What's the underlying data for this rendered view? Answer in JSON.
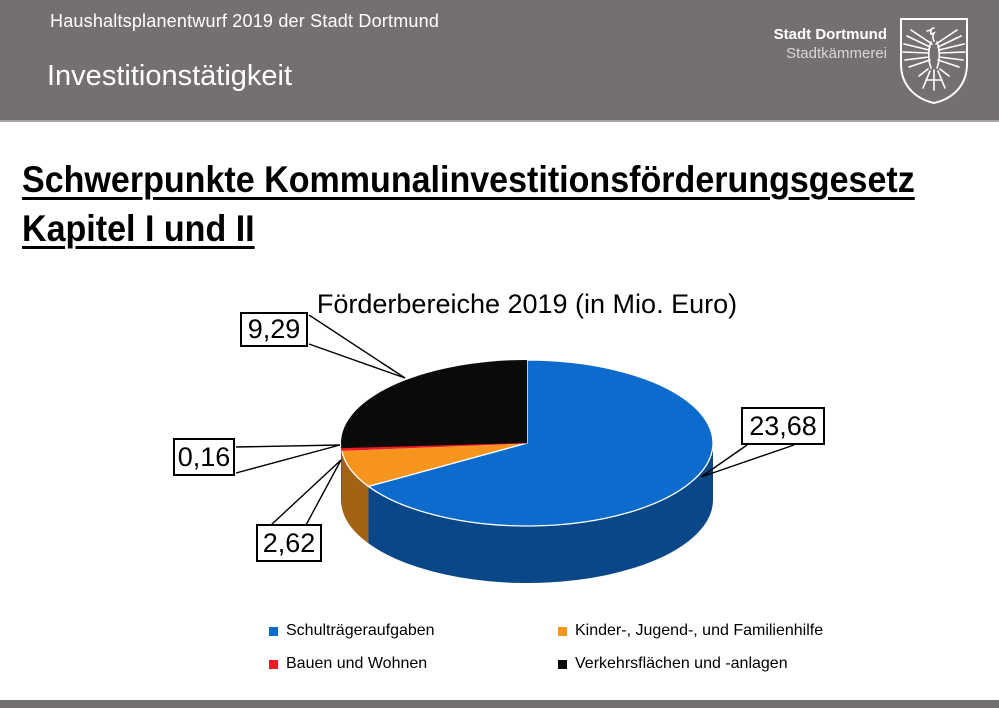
{
  "header": {
    "subtitle": "Haushaltsplanentwurf 2019 der Stadt Dortmund",
    "section": "Investitionstätigkeit",
    "org_name": "Stadt Dortmund",
    "org_dept": "Stadtkämmerei",
    "bar_color": "#757070"
  },
  "page": {
    "title_line1": "Schwerpunkte Kommunalinvestitionsförderungsgesetz",
    "title_line2": "Kapitel I und II"
  },
  "chart_data": {
    "type": "pie",
    "style": "3d",
    "title": "Förderbereiche 2019 (in Mio. Euro)",
    "start_angle_deg": 0,
    "direction": "clockwise",
    "legend_position": "bottom",
    "series": [
      {
        "label": "Schulträgeraufgaben",
        "value": 23.68,
        "display": "23,68",
        "color": "#0d6bce"
      },
      {
        "label": "Kinder-, Jugend-, und Familienhilfe",
        "value": 2.62,
        "display": "2,62",
        "color": "#f7941e"
      },
      {
        "label": "Bauen und Wohnen",
        "value": 0.16,
        "display": "0,16",
        "color": "#ed1c24"
      },
      {
        "label": "Verkehrsflächen und -anlagen",
        "value": 9.29,
        "display": "9,29",
        "color": "#0a0a0a"
      }
    ]
  }
}
